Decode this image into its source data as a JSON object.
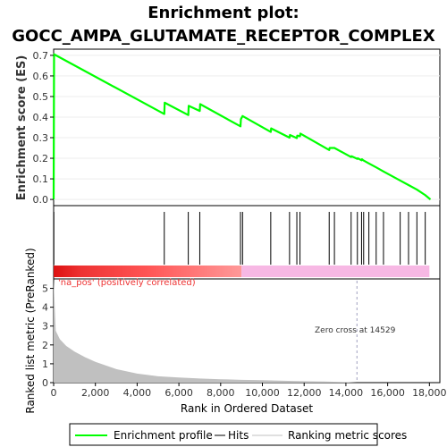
{
  "chart_data": {
    "type": "line",
    "title_line1": "Enrichment plot:",
    "title_line2": "GOCC_AMPA_GLUTAMATE_RECEPTOR_COMPLEX",
    "es_ylabel": "Enrichment score (ES)",
    "rank_ylabel": "Ranked list metric (PreRanked)",
    "xlabel": "Rank in Ordered Dataset",
    "xlim": [
      0,
      18500
    ],
    "es_ylim": [
      -0.03,
      0.73
    ],
    "es_yticks": [
      "0.0",
      "0.1",
      "0.2",
      "0.3",
      "0.4",
      "0.5",
      "0.6",
      "0.7"
    ],
    "metric_ylim": [
      0,
      5.5
    ],
    "metric_yticks": [
      "0",
      "1",
      "2",
      "3",
      "4",
      "5"
    ],
    "xticks": [
      "0",
      "2,000",
      "4,000",
      "6,000",
      "8,000",
      "10,000",
      "12,000",
      "14,000",
      "16,000",
      "18,000"
    ],
    "es_curve": {
      "x": [
        0,
        20,
        5300,
        5320,
        6450,
        6470,
        7000,
        7020,
        8950,
        8970,
        9050,
        10400,
        10420,
        11300,
        11320,
        11650,
        11670,
        11800,
        11820,
        13200,
        13220,
        13450,
        14250,
        14270,
        14550,
        14570,
        14750,
        14770,
        14850,
        15100,
        15450,
        15800,
        16600,
        17000,
        17400,
        17800,
        18050
      ],
      "y": [
        0.0,
        0.705,
        0.415,
        0.47,
        0.41,
        0.455,
        0.43,
        0.463,
        0.355,
        0.39,
        0.405,
        0.328,
        0.345,
        0.3,
        0.313,
        0.298,
        0.31,
        0.307,
        0.32,
        0.24,
        0.25,
        0.25,
        0.206,
        0.21,
        0.197,
        0.2,
        0.19,
        0.195,
        0.189,
        0.175,
        0.156,
        0.136,
        0.092,
        0.07,
        0.048,
        0.021,
        0.0
      ]
    },
    "hits": [
      10,
      5300,
      6450,
      7000,
      8950,
      9050,
      10400,
      11300,
      11650,
      11800,
      13200,
      13450,
      14250,
      14550,
      14750,
      14850,
      15100,
      15450,
      15800,
      16600,
      17000,
      17400,
      17800
    ],
    "ranked_metric": {
      "x": [
        0,
        100,
        300,
        600,
        1000,
        1500,
        2000,
        3000,
        4000,
        5000,
        6000,
        7000,
        8000,
        9000,
        10000,
        11000,
        12000,
        13000,
        14000,
        14529,
        15000,
        16000,
        17000,
        18000
      ],
      "y": [
        5.5,
        2.75,
        2.3,
        1.95,
        1.65,
        1.35,
        1.1,
        0.72,
        0.48,
        0.34,
        0.27,
        0.22,
        0.18,
        0.15,
        0.13,
        0.1,
        0.08,
        0.06,
        0.03,
        0.0,
        0.0,
        0.0,
        0.0,
        0.0
      ]
    },
    "pos_label": "'na_pos' (positively correlated)",
    "zero_cross_label": "Zero cross at 14529",
    "zero_cross_x": 14529,
    "legend": {
      "enrichment": "Enrichment profile",
      "hits": "Hits",
      "ranking": "Ranking metric scores"
    },
    "colors": {
      "es_line": "#00ff00",
      "hits": "#000000",
      "metric_fill": "#c0c0c0",
      "pos_red": "#ee3333",
      "neg_pink": "#f7b8e4",
      "zero_line": "#a0a0c0",
      "pos_text": "#ee3333"
    }
  }
}
